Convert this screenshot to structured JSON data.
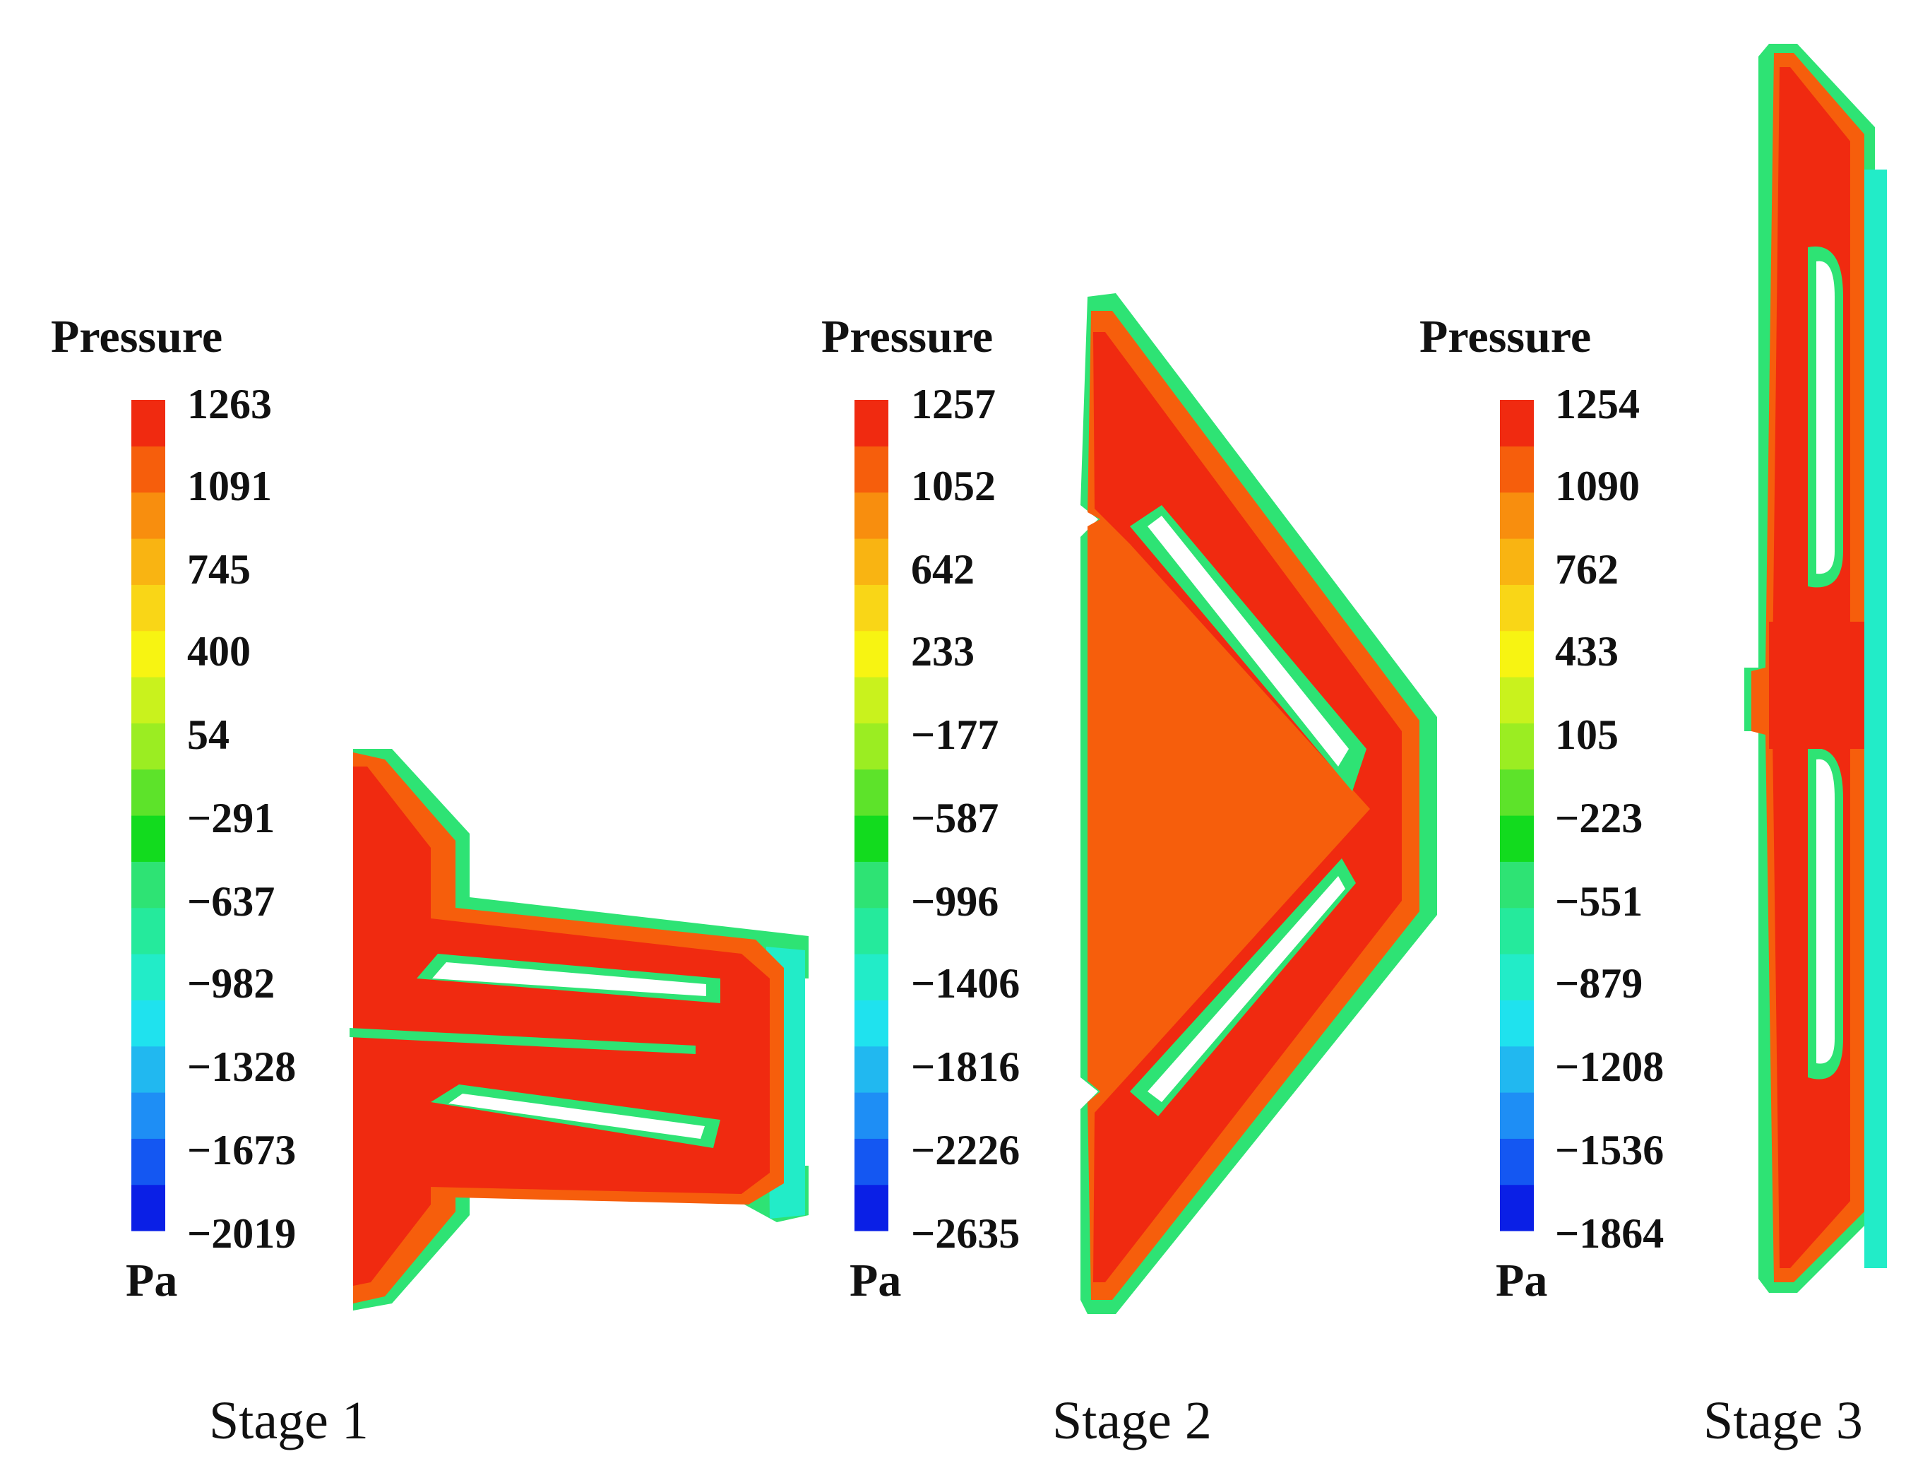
{
  "colormap": [
    "#0a1fe6",
    "#1457f2",
    "#1e8ef5",
    "#21b8f0",
    "#1fe2ee",
    "#22ecc8",
    "#25ea9c",
    "#2ee374",
    "#12db1e",
    "#5de32a",
    "#9bed22",
    "#c9f21d",
    "#f7f412",
    "#f9d617",
    "#f9b412",
    "#f88e0e",
    "#f65e0c",
    "#f02a10"
  ],
  "panels": [
    {
      "legend_title": "Pressure",
      "unit": "Pa",
      "stage_label": "Stage 1",
      "ticks": [
        "1263",
        "1091",
        "745",
        "400",
        "54",
        "−291",
        "−637",
        "−982",
        "−1328",
        "−1673",
        "−2019"
      ]
    },
    {
      "legend_title": "Pressure",
      "unit": "Pa",
      "stage_label": "Stage 2",
      "ticks": [
        "1257",
        "1052",
        "642",
        "233",
        "−177",
        "−587",
        "−996",
        "−1406",
        "−1816",
        "−2226",
        "−2635"
      ]
    },
    {
      "legend_title": "Pressure",
      "unit": "Pa",
      "stage_label": "Stage 3",
      "ticks": [
        "1254",
        "1090",
        "762",
        "433",
        "105",
        "−223",
        "−551",
        "−879",
        "−1208",
        "−1536",
        "−1864"
      ]
    }
  ]
}
